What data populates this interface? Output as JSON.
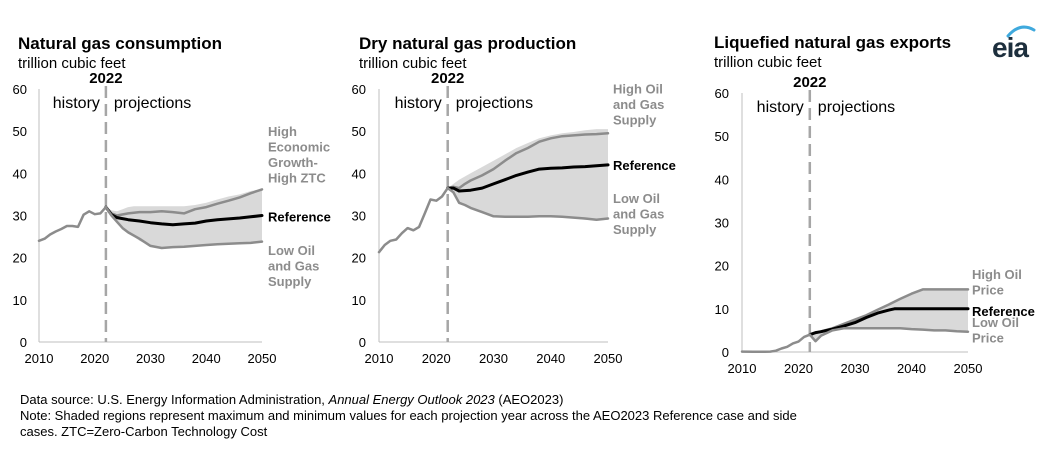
{
  "logo": {
    "text": "eia",
    "color": "#1d2f3d",
    "accent": "#3fa9dd"
  },
  "footer": {
    "source_prefix": "Data source: U.S. Energy Information Administration, ",
    "source_italic": "Annual Energy Outlook 2023",
    "source_suffix": " (AEO2023)",
    "note_line1": "Note: Shaded regions represent maximum and minimum values for each projection year across the AEO2023 Reference case and side",
    "note_line2": "cases. ZTC=Zero-Carbon Technology Cost"
  },
  "colors": {
    "reference": "#000000",
    "side": "#8c8c8c",
    "band": "#d9d9d9",
    "divider": "#a6a6a6",
    "axis": "#bfbfbf"
  },
  "chart_data": [
    {
      "type": "line",
      "title": "Natural gas consumption",
      "subtitle": "trillion cubic feet",
      "divider_year": 2022,
      "divider_label": "2022",
      "region_labels": [
        "history",
        "projections"
      ],
      "xlim": [
        2010,
        2050
      ],
      "ylim": [
        0,
        60
      ],
      "xticks": [
        2010,
        2020,
        2030,
        2040,
        2050
      ],
      "yticks": [
        0,
        10,
        20,
        30,
        40,
        50,
        60
      ],
      "band": {
        "years": [
          2022,
          2023,
          2024,
          2025,
          2026,
          2027,
          2028,
          2030,
          2032,
          2034,
          2036,
          2038,
          2040,
          2042,
          2044,
          2046,
          2048,
          2050
        ],
        "upper": [
          32,
          31.2,
          31,
          31.5,
          32,
          32.2,
          32.2,
          32.2,
          32.2,
          32.2,
          32.2,
          32.5,
          33,
          33.8,
          34.5,
          35,
          35.8,
          36.3
        ],
        "lower": [
          32,
          30,
          28.5,
          27,
          26,
          25,
          24,
          22.8,
          22.3,
          22.5,
          22.6,
          22.8,
          23,
          23.2,
          23.4,
          23.5,
          23.6,
          23.8
        ]
      },
      "series": [
        {
          "name": "High Economic Growth-High ZTC",
          "role": "side",
          "x": [
            2022,
            2023,
            2024,
            2026,
            2028,
            2030,
            2032,
            2034,
            2036,
            2038,
            2040,
            2042,
            2044,
            2046,
            2048,
            2050
          ],
          "y": [
            32,
            30.5,
            30,
            30.5,
            30.8,
            30.8,
            31,
            30.8,
            30.5,
            31.5,
            32,
            32.8,
            33.5,
            34.3,
            35.3,
            36.2
          ]
        },
        {
          "name": "Reference",
          "role": "reference",
          "x": [
            2022,
            2023,
            2024,
            2026,
            2028,
            2030,
            2032,
            2034,
            2036,
            2038,
            2040,
            2042,
            2044,
            2046,
            2048,
            2050
          ],
          "y": [
            32,
            30.2,
            29.5,
            29,
            28.7,
            28.3,
            28,
            27.8,
            28,
            28.2,
            28.7,
            29,
            29.2,
            29.4,
            29.7,
            30
          ]
        },
        {
          "name": "Low Oil and Gas Supply",
          "role": "side",
          "x": [
            2022,
            2023,
            2024,
            2025,
            2026,
            2028,
            2030,
            2032,
            2034,
            2036,
            2038,
            2040,
            2042,
            2044,
            2046,
            2048,
            2050
          ],
          "y": [
            32,
            30,
            28.5,
            27,
            26,
            24.5,
            22.8,
            22.3,
            22.5,
            22.6,
            22.8,
            23,
            23.2,
            23.3,
            23.4,
            23.5,
            23.8
          ]
        },
        {
          "name": "history",
          "role": "history",
          "x": [
            2010,
            2011,
            2012,
            2013,
            2014,
            2015,
            2016,
            2017,
            2018,
            2019,
            2020,
            2021,
            2022
          ],
          "y": [
            24,
            24.5,
            25.5,
            26.2,
            26.8,
            27.5,
            27.5,
            27.3,
            30.2,
            31,
            30.3,
            30.5,
            32
          ]
        }
      ],
      "end_labels": [
        {
          "series": "High Economic Growth-High ZTC",
          "lines": [
            "High",
            "Economic",
            "Growth-",
            "High ZTC"
          ],
          "anchor_y": 44.5
        },
        {
          "series": "Reference",
          "lines": [
            "Reference"
          ],
          "anchor_y": 29.8
        },
        {
          "series": "Low Oil and Gas Supply",
          "lines": [
            "Low Oil",
            "and Gas",
            "Supply"
          ],
          "anchor_y": 18.2
        }
      ]
    },
    {
      "type": "line",
      "title": "Dry natural gas production",
      "subtitle": "trillion cubic feet",
      "divider_year": 2022,
      "divider_label": "2022",
      "region_labels": [
        "history",
        "projections"
      ],
      "xlim": [
        2010,
        2050
      ],
      "ylim": [
        0,
        60
      ],
      "xticks": [
        2010,
        2020,
        2030,
        2040,
        2050
      ],
      "yticks": [
        0,
        10,
        20,
        30,
        40,
        50,
        60
      ],
      "band": {
        "years": [
          2022,
          2023,
          2024,
          2026,
          2028,
          2030,
          2032,
          2034,
          2036,
          2038,
          2040,
          2042,
          2044,
          2046,
          2048,
          2050
        ],
        "upper": [
          36.5,
          37.5,
          38.5,
          40,
          41.5,
          43,
          44.5,
          46,
          47.2,
          48.3,
          49,
          49.5,
          49.8,
          50.2,
          50.5,
          50.5
        ],
        "lower": [
          36.5,
          35,
          33,
          32,
          31,
          30,
          29.8,
          29.7,
          29.7,
          29.7,
          29.7,
          29.5,
          29.3,
          29,
          28.8,
          29
        ]
      },
      "series": [
        {
          "name": "High Oil and Gas Supply",
          "role": "side",
          "x": [
            2022,
            2023,
            2024,
            2025,
            2026,
            2028,
            2030,
            2032,
            2034,
            2036,
            2038,
            2040,
            2042,
            2044,
            2046,
            2048,
            2050
          ],
          "y": [
            36.5,
            36.8,
            36.5,
            37.5,
            38.3,
            39.5,
            41,
            43,
            44.8,
            46,
            47.5,
            48.3,
            48.8,
            49,
            49.2,
            49.3,
            49.5
          ]
        },
        {
          "name": "Reference",
          "role": "reference",
          "x": [
            2022,
            2023,
            2024,
            2026,
            2028,
            2030,
            2032,
            2034,
            2036,
            2038,
            2040,
            2042,
            2044,
            2046,
            2048,
            2050
          ],
          "y": [
            36.5,
            36.5,
            35.8,
            36,
            36.5,
            37.5,
            38.5,
            39.5,
            40.3,
            41,
            41.2,
            41.3,
            41.5,
            41.6,
            41.8,
            42
          ]
        },
        {
          "name": "Low Oil and Gas Supply",
          "role": "side",
          "x": [
            2022,
            2023,
            2024,
            2025,
            2026,
            2028,
            2030,
            2032,
            2034,
            2036,
            2038,
            2040,
            2042,
            2044,
            2046,
            2048,
            2050
          ],
          "y": [
            36.5,
            35.5,
            33,
            32.5,
            31.8,
            30.8,
            29.8,
            29.7,
            29.7,
            29.7,
            29.8,
            29.8,
            29.7,
            29.5,
            29.3,
            29,
            29.3
          ]
        },
        {
          "name": "history",
          "role": "history",
          "x": [
            2010,
            2011,
            2012,
            2013,
            2014,
            2015,
            2016,
            2017,
            2018,
            2019,
            2020,
            2021,
            2022
          ],
          "y": [
            21.3,
            23,
            24,
            24.3,
            25.8,
            27,
            26.5,
            27.3,
            30.5,
            33.8,
            33.5,
            34.5,
            36.5
          ]
        }
      ],
      "end_labels": [
        {
          "series": "High Oil and Gas Supply",
          "lines": [
            "High Oil",
            "and Gas",
            "Supply"
          ],
          "anchor_y": 56.5
        },
        {
          "series": "Reference",
          "lines": [
            "Reference"
          ],
          "anchor_y": 42
        },
        {
          "series": "Low Oil and Gas Supply",
          "lines": [
            "Low Oil",
            "and Gas",
            "Supply"
          ],
          "anchor_y": 30.5
        }
      ]
    },
    {
      "type": "line",
      "title": "Liquefied natural gas exports",
      "subtitle": "trillion cubic feet",
      "divider_year": 2022,
      "divider_label": "2022",
      "region_labels": [
        "history",
        "projections"
      ],
      "xlim": [
        2010,
        2050
      ],
      "ylim": [
        0,
        60
      ],
      "xticks": [
        2010,
        2020,
        2030,
        2040,
        2050
      ],
      "yticks": [
        0,
        10,
        20,
        30,
        40,
        50,
        60
      ],
      "band": {
        "years": [
          2022,
          2023,
          2024,
          2026,
          2028,
          2030,
          2032,
          2034,
          2036,
          2038,
          2040,
          2042,
          2044,
          2046,
          2048,
          2050
        ],
        "upper": [
          4,
          4.6,
          4.8,
          5.5,
          6.5,
          7.5,
          8.5,
          9.8,
          11,
          12.3,
          13.5,
          14.5,
          14.5,
          14.5,
          14.5,
          14.5
        ],
        "lower": [
          4,
          2.5,
          3.8,
          5,
          5.5,
          5.5,
          5.5,
          5.5,
          5.5,
          5.5,
          5.3,
          5.2,
          5,
          5,
          4.8,
          4.7
        ]
      },
      "series": [
        {
          "name": "High Oil Price",
          "role": "side",
          "x": [
            2022,
            2023,
            2024,
            2026,
            2028,
            2030,
            2032,
            2034,
            2036,
            2038,
            2040,
            2042,
            2044,
            2046,
            2048,
            2050
          ],
          "y": [
            4,
            4.4,
            4.8,
            5.5,
            6.5,
            7.5,
            8.5,
            9.8,
            11,
            12.3,
            13.5,
            14.5,
            14.5,
            14.5,
            14.5,
            14.5
          ]
        },
        {
          "name": "Reference",
          "role": "reference",
          "x": [
            2022,
            2023,
            2024,
            2026,
            2028,
            2030,
            2032,
            2034,
            2036,
            2037,
            2038,
            2040,
            2042,
            2044,
            2046,
            2048,
            2050
          ],
          "y": [
            4,
            4.5,
            4.7,
            5.3,
            6,
            6.8,
            8,
            9,
            9.7,
            10,
            10,
            10,
            10,
            10,
            10,
            10,
            10
          ]
        },
        {
          "name": "Low Oil Price",
          "role": "side",
          "x": [
            2022,
            2023,
            2024,
            2026,
            2028,
            2030,
            2032,
            2034,
            2036,
            2038,
            2040,
            2042,
            2044,
            2046,
            2048,
            2050
          ],
          "y": [
            4,
            2.5,
            3.8,
            5,
            5.5,
            5.5,
            5.5,
            5.5,
            5.5,
            5.5,
            5.3,
            5.2,
            5,
            5,
            4.8,
            4.7
          ]
        },
        {
          "name": "history",
          "role": "history",
          "x": [
            2010,
            2012,
            2014,
            2015,
            2016,
            2017,
            2018,
            2019,
            2020,
            2021,
            2022
          ],
          "y": [
            0.1,
            0.05,
            0.05,
            0.1,
            0.3,
            0.8,
            1.2,
            2,
            2.4,
            3.5,
            4
          ]
        }
      ],
      "end_labels": [
        {
          "series": "High Oil Price",
          "lines": [
            "High Oil",
            "Price"
          ],
          "anchor_y": 16.3
        },
        {
          "series": "Reference",
          "lines": [
            "Reference"
          ],
          "anchor_y": 9.5
        },
        {
          "series": "Low Oil Price",
          "lines": [
            "Low Oil",
            "Price"
          ],
          "anchor_y": 5.2
        }
      ]
    }
  ]
}
